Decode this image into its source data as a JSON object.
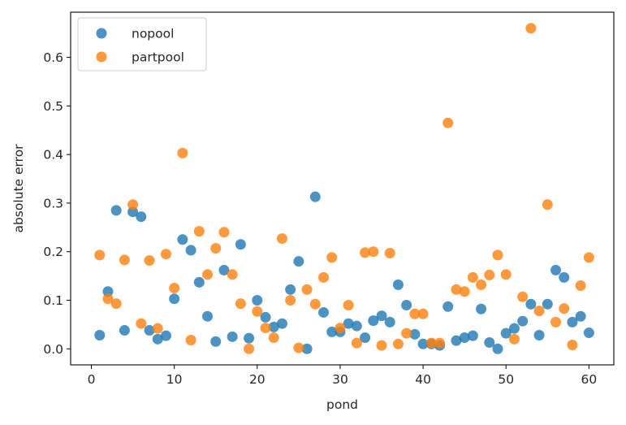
{
  "chart_data": {
    "type": "scatter",
    "xlabel": "pond",
    "ylabel": "absolute error",
    "xlim": [
      -2.5,
      63
    ],
    "ylim": [
      -0.033,
      0.693
    ],
    "xticks": [
      0,
      10,
      20,
      30,
      40,
      50,
      60
    ],
    "yticks": [
      0.0,
      0.1,
      0.2,
      0.3,
      0.4,
      0.5,
      0.6
    ],
    "xtick_labels": [
      "0",
      "10",
      "20",
      "30",
      "40",
      "50",
      "60"
    ],
    "ytick_labels": [
      "0.0",
      "0.1",
      "0.2",
      "0.3",
      "0.4",
      "0.5",
      "0.6"
    ],
    "grid": false,
    "legend_position": "upper-left",
    "x": [
      1,
      2,
      3,
      4,
      5,
      6,
      7,
      8,
      9,
      10,
      11,
      12,
      13,
      14,
      15,
      16,
      17,
      18,
      19,
      20,
      21,
      22,
      23,
      24,
      25,
      26,
      27,
      28,
      29,
      30,
      31,
      32,
      33,
      34,
      35,
      36,
      37,
      38,
      39,
      40,
      41,
      42,
      43,
      44,
      45,
      46,
      47,
      48,
      49,
      50,
      51,
      52,
      53,
      54,
      55,
      56,
      57,
      58,
      59,
      60
    ],
    "series": [
      {
        "name": "nopool",
        "color": "#1f77b4",
        "values": [
          0.028,
          0.118,
          0.285,
          0.038,
          0.282,
          0.272,
          0.038,
          0.02,
          0.027,
          0.103,
          0.225,
          0.203,
          0.137,
          0.067,
          0.015,
          0.162,
          0.025,
          0.215,
          0.022,
          0.1,
          0.065,
          0.045,
          0.052,
          0.122,
          0.18,
          0.0,
          0.313,
          0.075,
          0.035,
          0.035,
          0.052,
          0.047,
          0.023,
          0.058,
          0.068,
          0.055,
          0.132,
          0.09,
          0.03,
          0.01,
          0.01,
          0.007,
          0.087,
          0.017,
          0.023,
          0.027,
          0.082,
          0.013,
          0.0,
          0.032,
          0.042,
          0.057,
          0.092,
          0.028,
          0.092,
          0.162,
          0.147,
          0.055,
          0.067,
          0.033
        ]
      },
      {
        "name": "partpool",
        "color": "#ff7f0e",
        "values": [
          0.193,
          0.103,
          0.093,
          0.183,
          0.297,
          0.052,
          0.182,
          0.042,
          0.195,
          0.125,
          0.403,
          0.018,
          0.242,
          0.153,
          0.207,
          0.24,
          0.153,
          0.093,
          0.0,
          0.077,
          0.043,
          0.023,
          0.227,
          0.1,
          0.002,
          0.122,
          0.092,
          0.147,
          0.188,
          0.043,
          0.09,
          0.012,
          0.198,
          0.2,
          0.007,
          0.197,
          0.01,
          0.032,
          0.072,
          0.072,
          0.012,
          0.012,
          0.465,
          0.122,
          0.118,
          0.147,
          0.132,
          0.152,
          0.193,
          0.153,
          0.02,
          0.107,
          0.66,
          0.078,
          0.297,
          0.055,
          0.083,
          0.008,
          0.13,
          0.188
        ]
      }
    ]
  }
}
